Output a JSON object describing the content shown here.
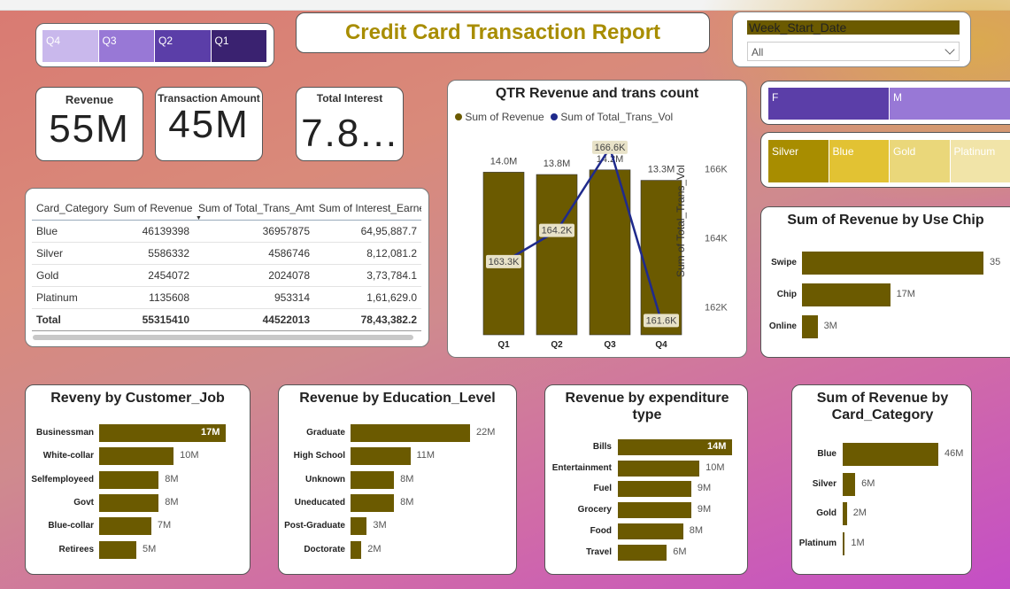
{
  "report_title": "Credit Card Transaction Report",
  "quarter_slicer": {
    "items": [
      {
        "label": "Q4",
        "color": "#c9b8ec"
      },
      {
        "label": "Q3",
        "color": "#9878d6"
      },
      {
        "label": "Q2",
        "color": "#5b3ea8"
      },
      {
        "label": "Q1",
        "color": "#3a2270"
      }
    ]
  },
  "week_slicer": {
    "header": "Week_Start_Date",
    "selected": "All"
  },
  "kpis": {
    "revenue": {
      "label": "Revenue",
      "value": "55M"
    },
    "transaction_amount": {
      "label": "Transaction Amount",
      "value": "45M"
    },
    "total_interest": {
      "label": "Total Interest",
      "value": "7.8..."
    }
  },
  "table": {
    "columns": [
      "Card_Category",
      "Sum of Revenue",
      "Sum of Total_Trans_Amt",
      "Sum of Interest_Earne"
    ],
    "rows": [
      [
        "Blue",
        "46139398",
        "36957875",
        "64,95,887.7"
      ],
      [
        "Silver",
        "5586332",
        "4586746",
        "8,12,081.2"
      ],
      [
        "Gold",
        "2454072",
        "2024078",
        "3,73,784.1"
      ],
      [
        "Platinum",
        "1135608",
        "953314",
        "1,61,629.0"
      ]
    ],
    "total": [
      "Total",
      "55315410",
      "44522013",
      "78,43,382.2"
    ]
  },
  "gender_slicer": {
    "items": [
      {
        "label": "F",
        "color": "#5b3ea8"
      },
      {
        "label": "M",
        "color": "#9878d6"
      }
    ]
  },
  "category_slicer": {
    "items": [
      {
        "label": "Silver",
        "color": "#a88d00"
      },
      {
        "label": "Blue",
        "color": "#e2c233"
      },
      {
        "label": "Gold",
        "color": "#ead77a"
      },
      {
        "label": "Platinum",
        "color": "#f1e4a8"
      }
    ]
  },
  "colors": {
    "bar": "#6b5a00",
    "line": "#1f2a8c"
  },
  "chart_data": [
    {
      "type": "bar-line combo",
      "title": "QTR Revenue and trans count",
      "legend": [
        "Sum of Revenue",
        "Sum of Total_Trans_Vol"
      ],
      "categories": [
        "Q1",
        "Q2",
        "Q3",
        "Q4"
      ],
      "series": [
        {
          "name": "Sum of Revenue",
          "values": [
            14.0,
            13.8,
            14.2,
            13.3
          ],
          "labels": [
            "14.0M",
            "13.8M",
            "14.2M",
            "13.3M"
          ]
        },
        {
          "name": "Sum of Total_Trans_Vol",
          "values": [
            163.3,
            164.2,
            166.6,
            161.6
          ],
          "labels": [
            "163.3K",
            "164.2K",
            "166.6K",
            "161.6K"
          ]
        }
      ],
      "y2label": "Sum of Total_Trans_Vol",
      "y2ticks": [
        "166K",
        "164K",
        "162K"
      ],
      "y2lim": [
        161.2,
        166.8
      ],
      "ylim": [
        0,
        16.7
      ]
    },
    {
      "type": "bar",
      "orientation": "horizontal",
      "title": "Sum of Revenue by Use Chip",
      "categories": [
        "Swipe",
        "Chip",
        "Online"
      ],
      "values": [
        35,
        17,
        3
      ],
      "labels": [
        "35",
        "17M",
        "3M"
      ]
    },
    {
      "type": "bar",
      "orientation": "horizontal",
      "title": "Reveny by Customer_Job",
      "categories": [
        "Businessman",
        "White-collar",
        "Selfemployeed",
        "Govt",
        "Blue-collar",
        "Retirees"
      ],
      "values": [
        17,
        10,
        8,
        8,
        7,
        5
      ],
      "labels": [
        "17M",
        "10M",
        "8M",
        "8M",
        "7M",
        "5M"
      ]
    },
    {
      "type": "bar",
      "orientation": "horizontal",
      "title": "Revenue by Education_Level",
      "categories": [
        "Graduate",
        "High School",
        "Unknown",
        "Uneducated",
        "Post-Graduate",
        "Doctorate"
      ],
      "values": [
        22,
        11,
        8,
        8,
        3,
        2
      ],
      "labels": [
        "22M",
        "11M",
        "8M",
        "8M",
        "3M",
        "2M"
      ]
    },
    {
      "type": "bar",
      "orientation": "horizontal",
      "title": "Revenue by expenditure type",
      "categories": [
        "Bills",
        "Entertainment",
        "Fuel",
        "Grocery",
        "Food",
        "Travel"
      ],
      "values": [
        14,
        10,
        9,
        9,
        8,
        6
      ],
      "labels": [
        "14M",
        "10M",
        "9M",
        "9M",
        "8M",
        "6M"
      ]
    },
    {
      "type": "bar",
      "orientation": "horizontal",
      "title": "Sum of Revenue by Card_Category",
      "categories": [
        "Blue",
        "Silver",
        "Gold",
        "Platinum"
      ],
      "values": [
        46,
        6,
        2,
        1
      ],
      "labels": [
        "46M",
        "6M",
        "2M",
        "1M"
      ]
    }
  ]
}
